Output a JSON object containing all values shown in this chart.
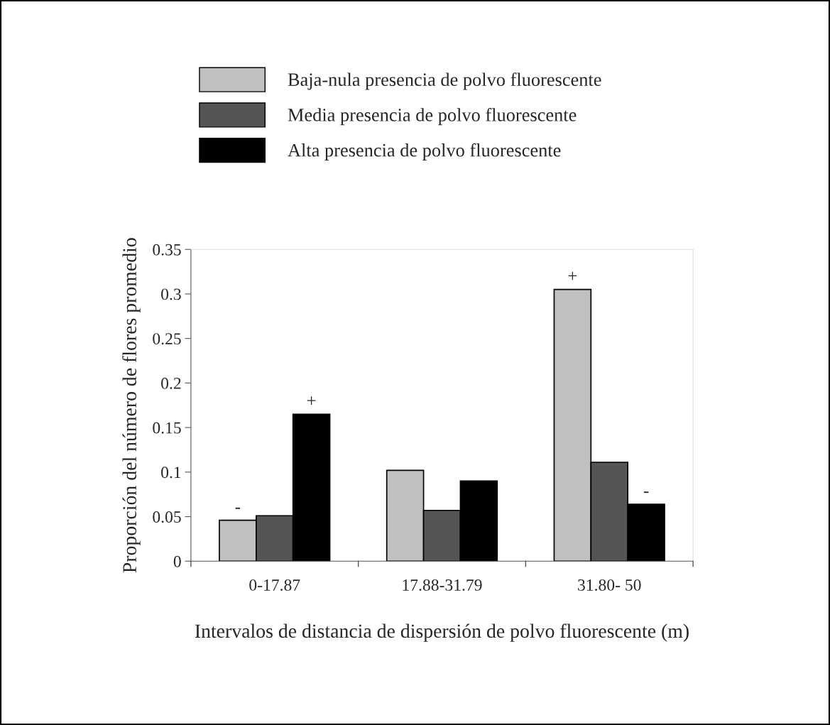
{
  "chart_data": {
    "type": "bar",
    "categories": [
      "0-17.87",
      "17.88-31.79",
      "31.80- 50"
    ],
    "series": [
      {
        "name": "Baja-nula presencia de polvo fluorescente",
        "color": "#c0c0c0",
        "values": [
          0.046,
          0.102,
          0.305
        ],
        "value_labels": [
          "-",
          null,
          "+"
        ]
      },
      {
        "name": "Media presencia de polvo fluorescente",
        "color": "#555555",
        "values": [
          0.051,
          0.057,
          0.111
        ]
      },
      {
        "name": "Alta presencia de polvo fluorescente",
        "color": "#000000",
        "values": [
          0.165,
          0.09,
          0.064
        ],
        "value_labels": [
          "+",
          null,
          "-"
        ]
      }
    ],
    "xlabel": "Intervalos de distancia de dispersión de polvo fluorescente (m)",
    "ylabel": "Proporción del número de flores promedio",
    "ylim": [
      0,
      0.35
    ],
    "yticks": [
      0,
      0.05,
      0.1,
      0.15,
      0.2,
      0.25,
      0.3,
      0.35
    ],
    "legend": "top",
    "grid": false
  }
}
